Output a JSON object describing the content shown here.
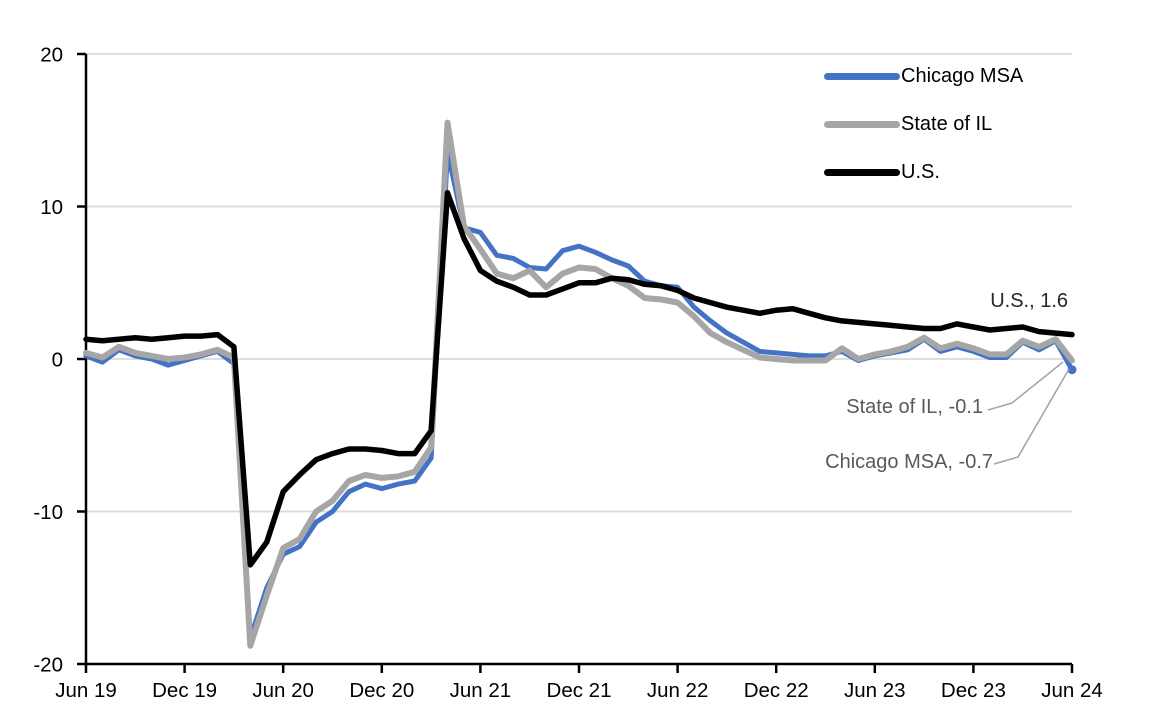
{
  "chart_data": {
    "type": "line",
    "title": "",
    "xlabel": "",
    "ylabel": "",
    "ylim": [
      -20,
      20
    ],
    "yticks": [
      20,
      10,
      0,
      -10,
      -20
    ],
    "gridline_values": [
      20,
      10,
      0,
      -10
    ],
    "grid": true,
    "legend_position": "top-right",
    "xtick_labels": [
      "Jun 19",
      "Dec 19",
      "Jun 20",
      "Dec 20",
      "Jun 21",
      "Dec 21",
      "Jun 22",
      "Dec 22",
      "Jun 23",
      "Dec 23",
      "Jun 24"
    ],
    "categories": [
      "Jun 19",
      "Jul 19",
      "Aug 19",
      "Sep 19",
      "Oct 19",
      "Nov 19",
      "Dec 19",
      "Jan 20",
      "Feb 20",
      "Mar 20",
      "Apr 20",
      "May 20",
      "Jun 20",
      "Jul 20",
      "Aug 20",
      "Sep 20",
      "Oct 20",
      "Nov 20",
      "Dec 20",
      "Jan 21",
      "Feb 21",
      "Mar 21",
      "Apr 21",
      "May 21",
      "Jun 21",
      "Jul 21",
      "Aug 21",
      "Sep 21",
      "Oct 21",
      "Nov 21",
      "Dec 21",
      "Jan 22",
      "Feb 22",
      "Mar 22",
      "Apr 22",
      "May 22",
      "Jun 22",
      "Jul 22",
      "Aug 22",
      "Sep 22",
      "Oct 22",
      "Nov 22",
      "Dec 22",
      "Jan 23",
      "Feb 23",
      "Mar 23",
      "Apr 23",
      "May 23",
      "Jun 23",
      "Jul 23",
      "Aug 23",
      "Sep 23",
      "Oct 23",
      "Nov 23",
      "Dec 23",
      "Jan 24",
      "Feb 24",
      "Mar 24",
      "Apr 24",
      "May 24",
      "Jun 24"
    ],
    "series": [
      {
        "name": "Chicago MSA",
        "color": "#4472C4",
        "stroke_width": 5,
        "end_dot": true,
        "values": [
          0.2,
          -0.2,
          0.6,
          0.2,
          0.0,
          -0.4,
          -0.1,
          0.2,
          0.5,
          -0.3,
          -18.3,
          -15.0,
          -12.8,
          -12.3,
          -10.7,
          -10.0,
          -8.7,
          -8.2,
          -8.5,
          -8.2,
          -8.0,
          -6.5,
          13.6,
          8.6,
          8.3,
          6.8,
          6.6,
          6.0,
          5.9,
          7.1,
          7.4,
          7.0,
          6.5,
          6.1,
          5.1,
          4.8,
          4.7,
          3.4,
          2.5,
          1.7,
          1.1,
          0.5,
          0.4,
          0.3,
          0.2,
          0.2,
          0.5,
          -0.1,
          0.2,
          0.4,
          0.6,
          1.3,
          0.5,
          0.8,
          0.5,
          0.1,
          0.1,
          1.1,
          0.6,
          1.2,
          -0.7
        ]
      },
      {
        "name": "State of IL",
        "color": "#A6A6A6",
        "stroke_width": 6,
        "end_dot": false,
        "values": [
          0.4,
          0.1,
          0.8,
          0.4,
          0.2,
          0.0,
          0.1,
          0.3,
          0.6,
          0.1,
          -18.8,
          -15.5,
          -12.4,
          -11.8,
          -10.0,
          -9.3,
          -8.0,
          -7.6,
          -7.8,
          -7.7,
          -7.4,
          -5.8,
          15.5,
          8.7,
          7.2,
          5.6,
          5.3,
          5.8,
          4.7,
          5.6,
          6.0,
          5.9,
          5.3,
          4.8,
          4.0,
          3.9,
          3.7,
          2.8,
          1.7,
          1.1,
          0.6,
          0.1,
          0.0,
          -0.1,
          -0.1,
          -0.1,
          0.7,
          0.0,
          0.3,
          0.5,
          0.8,
          1.4,
          0.7,
          1.0,
          0.7,
          0.3,
          0.3,
          1.2,
          0.8,
          1.3,
          -0.1
        ]
      },
      {
        "name": "U.S.",
        "color": "#000000",
        "stroke_width": 5.5,
        "end_dot": false,
        "values": [
          1.3,
          1.2,
          1.3,
          1.4,
          1.3,
          1.4,
          1.5,
          1.5,
          1.6,
          0.8,
          -13.5,
          -12.0,
          -8.7,
          -7.6,
          -6.6,
          -6.2,
          -5.9,
          -5.9,
          -6.0,
          -6.2,
          -6.2,
          -4.7,
          10.9,
          7.9,
          5.8,
          5.1,
          4.7,
          4.2,
          4.2,
          4.6,
          5.0,
          5.0,
          5.3,
          5.2,
          4.9,
          4.8,
          4.5,
          4.0,
          3.7,
          3.4,
          3.2,
          3.0,
          3.2,
          3.3,
          3.0,
          2.7,
          2.5,
          2.4,
          2.3,
          2.2,
          2.1,
          2.0,
          2.0,
          2.3,
          2.1,
          1.9,
          2.0,
          2.1,
          1.8,
          1.7,
          1.6
        ]
      }
    ],
    "annotations": [
      {
        "label": "U.S., 1.6",
        "color": "#262626"
      },
      {
        "label": "State of IL, -0.1",
        "color": "#595959"
      },
      {
        "label": "Chicago MSA, -0.7",
        "color": "#595959"
      }
    ],
    "colors": {
      "axis": "#000000",
      "gridline": "#D9D9D9",
      "leader": "#A6A6A6",
      "background": "#FFFFFF"
    }
  }
}
